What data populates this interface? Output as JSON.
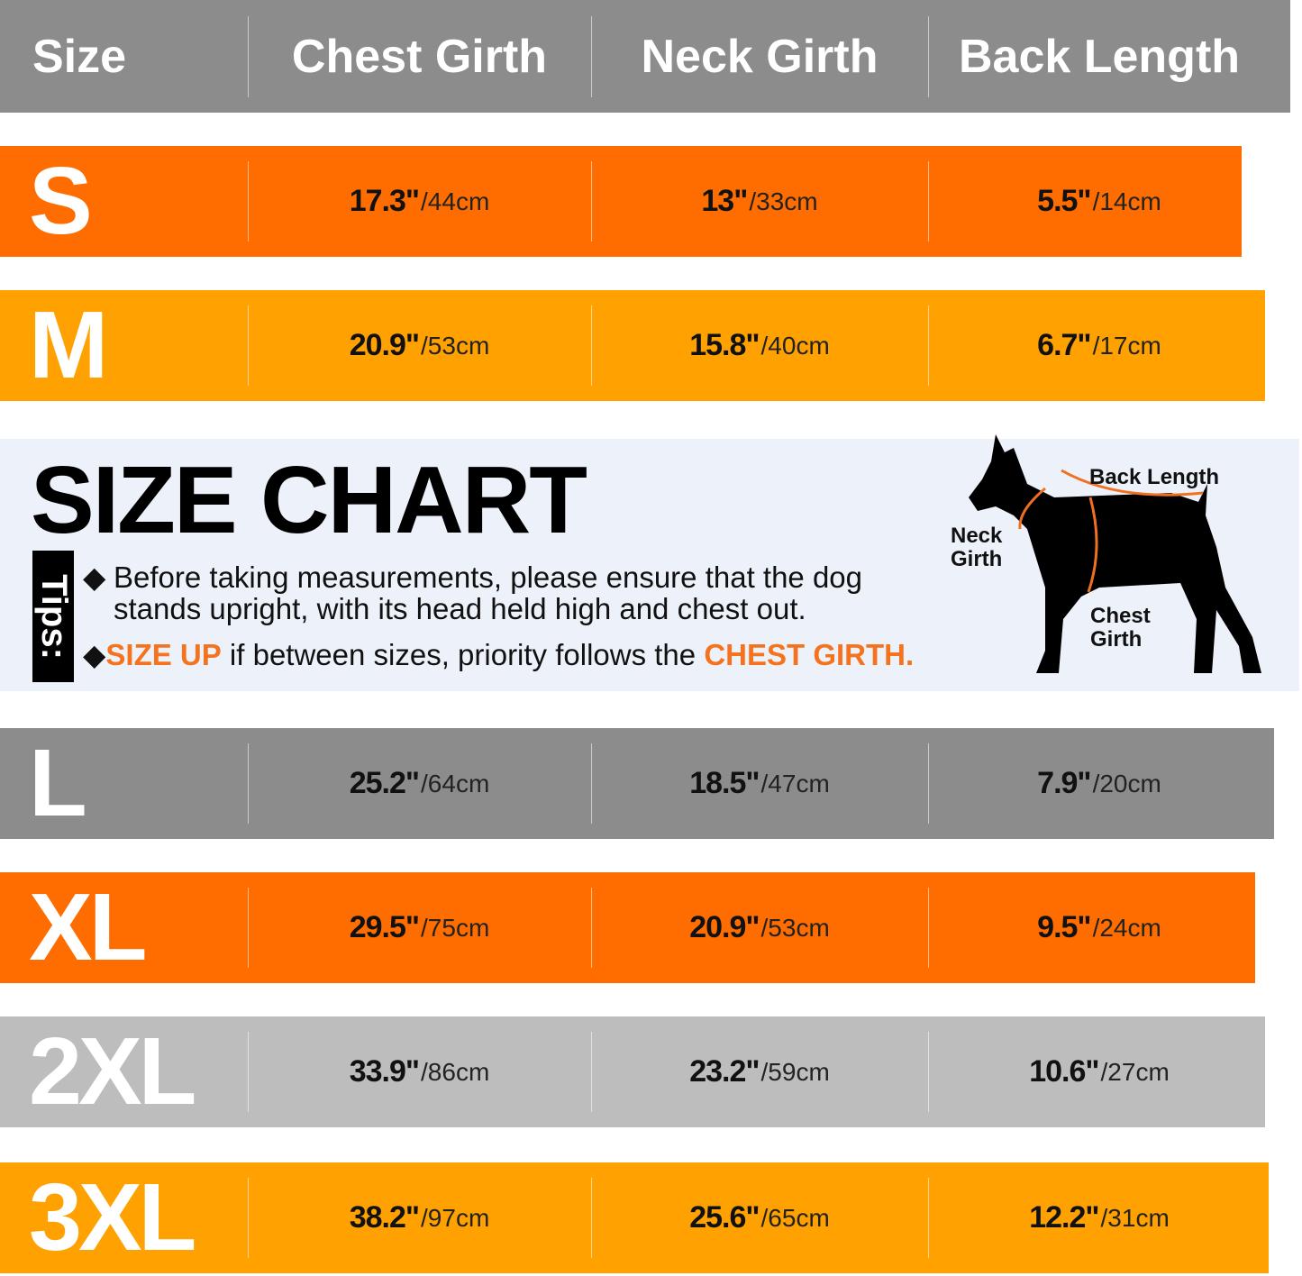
{
  "colors": {
    "header": "#8c8c8c",
    "orange": "#ff6d00",
    "amber": "#ffa100",
    "gray": "#8c8c8c",
    "light_gray": "#bdbdbd",
    "highlight": "#f5731f",
    "panel": "#edf2fa"
  },
  "header": {
    "size": "Size",
    "chest": "Chest Girth",
    "neck": "Neck Girth",
    "back": "Back Length"
  },
  "rows": [
    {
      "size": "S",
      "color": "#ff6d00",
      "chest": "17.3\"",
      "chest_cm": "/44cm",
      "neck": "13\"",
      "neck_cm": "/33cm",
      "back": "5.5\"",
      "back_cm": "/14cm"
    },
    {
      "size": "M",
      "color": "#ffa100",
      "chest": "20.9\"",
      "chest_cm": "/53cm",
      "neck": "15.8\"",
      "neck_cm": "/40cm",
      "back": "6.7\"",
      "back_cm": "/17cm"
    },
    {
      "size": "L",
      "color": "#8c8c8c",
      "chest": "25.2\"",
      "chest_cm": "/64cm",
      "neck": "18.5\"",
      "neck_cm": "/47cm",
      "back": "7.9\"",
      "back_cm": "/20cm"
    },
    {
      "size": "XL",
      "color": "#ff6d00",
      "chest": "29.5\"",
      "chest_cm": "/75cm",
      "neck": "20.9\"",
      "neck_cm": "/53cm",
      "back": "9.5\"",
      "back_cm": "/24cm"
    },
    {
      "size": "2XL",
      "color": "#bdbdbd",
      "chest": "33.9\"",
      "chest_cm": "/86cm",
      "neck": "23.2\"",
      "neck_cm": "/59cm",
      "back": "10.6\"",
      "back_cm": "/27cm"
    },
    {
      "size": "3XL",
      "color": "#ffa100",
      "chest": "38.2\"",
      "chest_cm": "/97cm",
      "neck": "25.6\"",
      "neck_cm": "/65cm",
      "back": "12.2\"",
      "back_cm": "/31cm"
    }
  ],
  "panel": {
    "title": "SIZE CHART",
    "tips_label": "Tips:",
    "tip1": "Before taking measurements, please ensure that the dog stands upright, with its head held high and chest out.",
    "tip2_a": "SIZE UP",
    "tip2_b": " if between sizes, priority follows the ",
    "tip2_c": "CHEST GIRTH.",
    "bullet": "◆",
    "diagram": {
      "back": "Back Length",
      "neck_1": "Neck",
      "neck_2": "Girth",
      "chest_1": "Chest",
      "chest_2": "Girth",
      "icon": "dog-silhouette-icon"
    }
  }
}
